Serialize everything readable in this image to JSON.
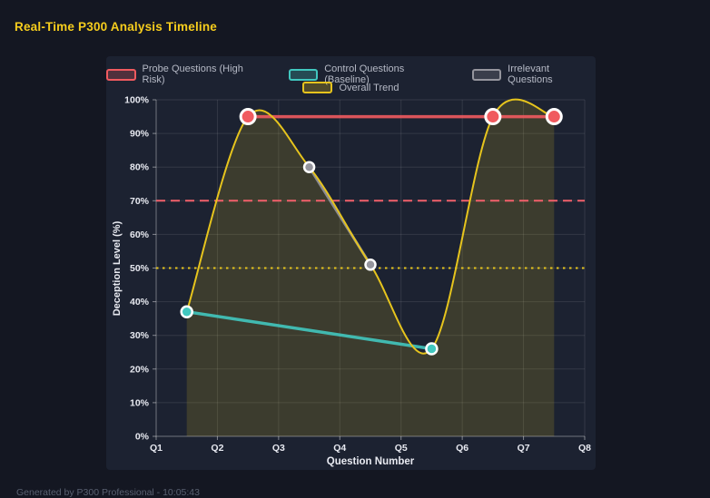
{
  "footer": {
    "text": "Generated by P300 Professional - 10:05:43"
  },
  "chart_data": {
    "type": "line",
    "title": "Real-Time P300 Analysis Timeline",
    "xlabel": "Question Number",
    "ylabel": "Deception Level (%)",
    "xlim": [
      1,
      8
    ],
    "ylim": [
      0,
      100
    ],
    "x_ticks": [
      "Q1",
      "Q2",
      "Q3",
      "Q4",
      "Q5",
      "Q6",
      "Q7",
      "Q8"
    ],
    "y_ticks": [
      "0%",
      "10%",
      "20%",
      "30%",
      "40%",
      "50%",
      "60%",
      "70%",
      "80%",
      "90%",
      "100%"
    ],
    "grid": true,
    "legend_position": "top",
    "background": "#1c2231",
    "series": [
      {
        "name": "Probe Questions (High Risk)",
        "color": "#f05a5f",
        "line_width": 3.5,
        "point_radius": 8,
        "points": [
          [
            2.5,
            95
          ],
          [
            6.5,
            95
          ],
          [
            7.5,
            95
          ]
        ]
      },
      {
        "name": "Control Questions (Baseline)",
        "color": "#41c7bf",
        "line_width": 3.5,
        "point_radius": 6,
        "points": [
          [
            1.5,
            37
          ],
          [
            5.5,
            26
          ]
        ]
      },
      {
        "name": "Irrelevant Questions",
        "color": "#95959d",
        "line_width": 3,
        "point_radius": 5.5,
        "points": [
          [
            3.5,
            80
          ],
          [
            4.5,
            51
          ]
        ]
      },
      {
        "name": "Overall Trend",
        "color": "#e6c41d",
        "line_width": 2,
        "point_radius": 0,
        "smooth": true,
        "fill": true,
        "fill_opacity": 0.16,
        "points": [
          [
            1.5,
            37
          ],
          [
            2.5,
            95
          ],
          [
            3.5,
            80
          ],
          [
            4.5,
            51
          ],
          [
            5.5,
            26
          ],
          [
            6.5,
            95
          ],
          [
            7.5,
            95
          ]
        ]
      }
    ],
    "thresholds": [
      {
        "value": 70,
        "color": "#f2606b",
        "style": "dashed"
      },
      {
        "value": 50,
        "color": "#e6c41d",
        "style": "dotted"
      }
    ]
  }
}
